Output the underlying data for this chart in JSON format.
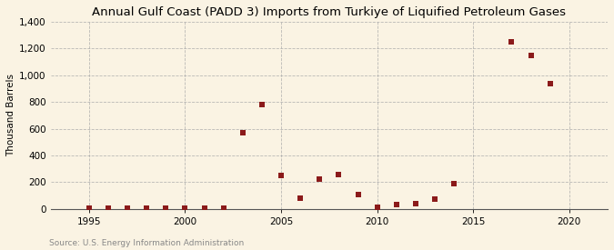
{
  "title": "Annual Gulf Coast (PADD 3) Imports from Turkiye of Liquified Petroleum Gases",
  "ylabel": "Thousand Barrels",
  "source": "Source: U.S. Energy Information Administration",
  "background_color": "#faf3e3",
  "plot_bg_color": "#faf3e3",
  "years": [
    1995,
    1996,
    1997,
    1998,
    1999,
    2000,
    2001,
    2002,
    2003,
    2004,
    2005,
    2006,
    2007,
    2008,
    2009,
    2010,
    2011,
    2012,
    2013,
    2014,
    2017,
    2018,
    2019
  ],
  "values": [
    2,
    5,
    5,
    3,
    2,
    5,
    3,
    5,
    570,
    780,
    250,
    80,
    220,
    260,
    110,
    10,
    30,
    40,
    70,
    190,
    1250,
    1150,
    940
  ],
  "marker_color": "#8b1a1a",
  "marker_size": 18,
  "xlim": [
    1993,
    2022
  ],
  "ylim": [
    0,
    1400
  ],
  "yticks": [
    0,
    200,
    400,
    600,
    800,
    1000,
    1200,
    1400
  ],
  "xticks": [
    1995,
    2000,
    2005,
    2010,
    2015,
    2020
  ],
  "title_fontsize": 9.5,
  "label_fontsize": 7.5,
  "tick_fontsize": 7.5,
  "source_fontsize": 6.5,
  "source_color": "#888888"
}
